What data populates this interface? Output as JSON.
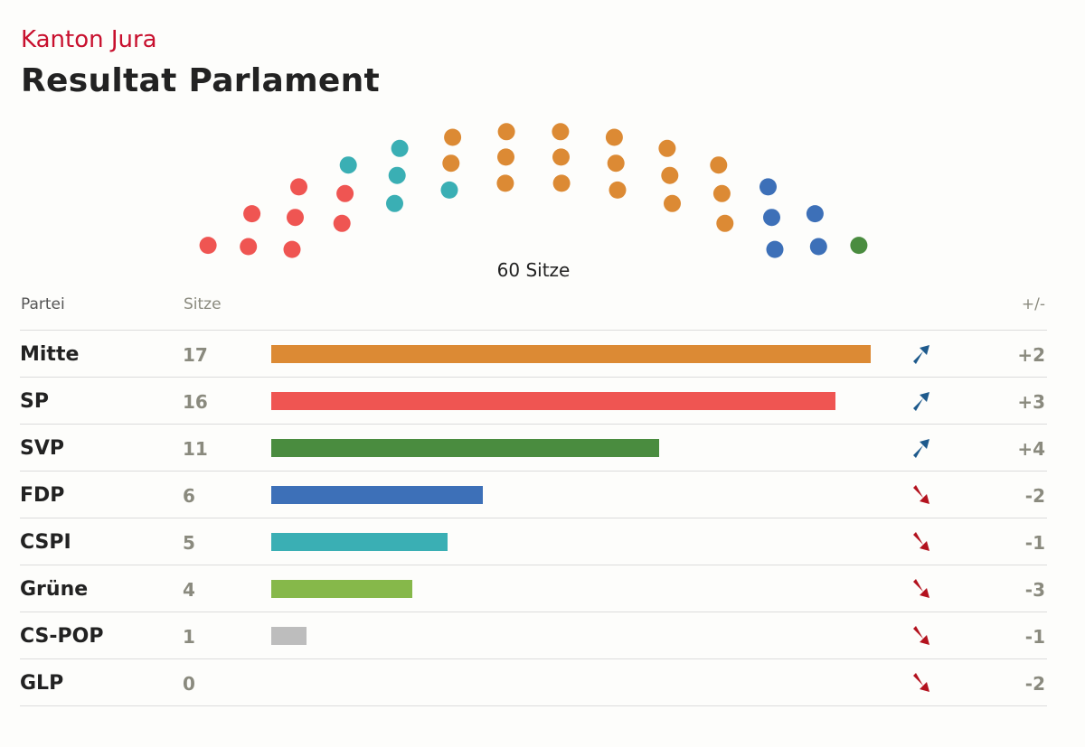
{
  "header": {
    "subtitle": "Kanton Jura",
    "title": "Resultat Parlament"
  },
  "hemicycle": {
    "total_label": "60 Sitze",
    "total_seats": 60
  },
  "table": {
    "col_party": "Partei",
    "col_seats": "Sitze",
    "col_diff": "+/-"
  },
  "colors": {
    "Mitte": "#dc8a34",
    "SP": "#ef5552",
    "SVP": "#4a8c3f",
    "FDP": "#3d70b8",
    "CSPI": "#3aafb4",
    "Grüne": "#86b84a",
    "CS-POP": "#bdbdbd",
    "GLP": "#9acd3c",
    "up_arrow": "#1e5a8c",
    "down_arrow": "#b3121e"
  },
  "chart_data": {
    "type": "bar",
    "orientation": "horizontal",
    "title": "Resultat Parlament",
    "subtitle": "Kanton Jura",
    "categories": [
      "Mitte",
      "SP",
      "SVP",
      "FDP",
      "CSPI",
      "Grüne",
      "CS-POP",
      "GLP"
    ],
    "values": [
      17,
      16,
      11,
      6,
      5,
      4,
      1,
      0
    ],
    "changes": [
      "+2",
      "+3",
      "+4",
      "-2",
      "-1",
      "-3",
      "-1",
      "-2"
    ],
    "trend": [
      "up",
      "up",
      "up",
      "down",
      "down",
      "down",
      "down",
      "down"
    ],
    "xlim": [
      0,
      17
    ]
  }
}
